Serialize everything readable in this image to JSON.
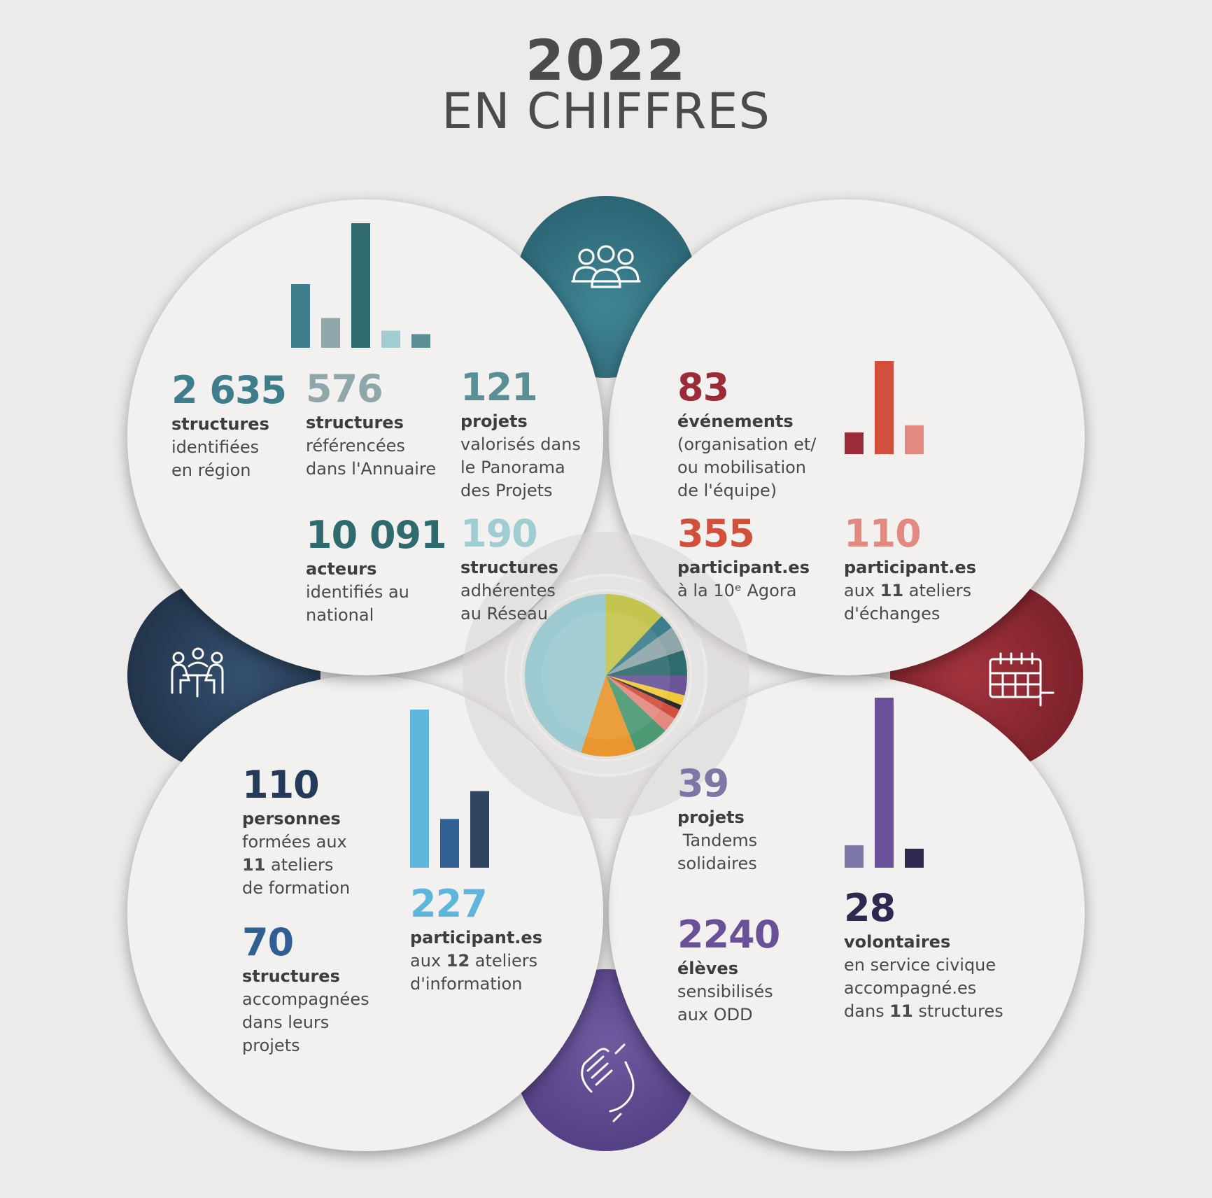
{
  "title": {
    "year": "2022",
    "subtitle": "EN CHIFFRES"
  },
  "icons": {
    "top": "group-people-icon",
    "left": "meeting-table-icon",
    "right": "calendar-icon",
    "bottom": "handshake-icon"
  },
  "colors": {
    "teal_petal": "#3a7a88",
    "navy_petal": "#2f4560",
    "red_petal": "#9b2c37",
    "purple_petal": "#6a5599",
    "circle_bg": "#f2f1ef",
    "page_bg": "#ecebea"
  },
  "top_left": {
    "s1": {
      "value": "2 635",
      "label": "structures",
      "lines": [
        "identifiées",
        "en région"
      ]
    },
    "s2": {
      "value": "576",
      "label": "structures",
      "lines": [
        "référencées",
        "dans l'Annuaire"
      ]
    },
    "s3": {
      "value": "121",
      "label": "projets",
      "lines": [
        "valorisés dans",
        "le Panorama",
        "des Projets"
      ]
    },
    "s4": {
      "value": "10 091",
      "label": "acteurs",
      "lines": [
        "identifiés au",
        "national"
      ]
    },
    "s5": {
      "value": "190",
      "label": "structures",
      "lines": [
        "adhérentes",
        "au Réseau"
      ]
    }
  },
  "top_right": {
    "s1": {
      "value": "83",
      "label": "événements",
      "lines": [
        "(organisation et/",
        "ou mobilisation",
        "de l'équipe)"
      ]
    },
    "s2": {
      "value": "355",
      "label": "participant.es",
      "lines": [
        "à la 10ᵉ Agora"
      ]
    },
    "s3": {
      "value": "110",
      "label": "participant.es",
      "line1_pre": "aux ",
      "line1_bold": "11",
      "line1_post": " ateliers",
      "line2": "d'échanges"
    }
  },
  "bottom_left": {
    "s1": {
      "value": "110",
      "label": "personnes",
      "line1": "formées aux",
      "line2_bold": "11",
      "line2_post": " ateliers",
      "line3": "de formation"
    },
    "s2": {
      "value": "70",
      "label": "structures",
      "lines": [
        "accompagnées",
        "dans leurs",
        "projets"
      ]
    },
    "s3": {
      "value": "227",
      "label": "participant.es",
      "line1_pre": "aux ",
      "line1_bold": "12",
      "line1_post": " ateliers",
      "line2": "d'information"
    }
  },
  "bottom_right": {
    "s1": {
      "value": "39",
      "label": "projets",
      "lines": [
        " Tandems",
        "solidaires"
      ]
    },
    "s2": {
      "value": "2240",
      "label": "élèves",
      "lines": [
        "sensibilisés",
        "aux ODD"
      ]
    },
    "s3": {
      "value": "28",
      "label": "volontaires",
      "line1": "en service civique",
      "line2": "accompagné.es",
      "line3_pre": "dans ",
      "line3_bold": "11",
      "line3_post": " structures"
    }
  },
  "chart_data": [
    {
      "type": "bar",
      "categories": [
        "structures identifiées en région",
        "structures référencées dans l'Annuaire",
        "acteurs identifiés au national",
        "structures adhérentes au Réseau",
        "projets valorisés"
      ],
      "values": [
        2635,
        576,
        10091,
        190,
        121
      ],
      "colors": [
        "#3e7e8c",
        "#8fa6ab",
        "#2f6b6e",
        "#9fcdd2",
        "#5b8f98"
      ]
    },
    {
      "type": "bar",
      "categories": [
        "événements",
        "participant.es à la 10ᵉ Agora",
        "participant.es aux ateliers d'échanges"
      ],
      "values": [
        83,
        355,
        110
      ],
      "colors": [
        "#9b2c37",
        "#d24f3c",
        "#e38a80"
      ]
    },
    {
      "type": "bar",
      "categories": [
        "participant.es aux ateliers d'information",
        "structures accompagnées",
        "personnes formées"
      ],
      "values": [
        227,
        70,
        110
      ],
      "colors": [
        "#5fb6dc",
        "#2f5f93",
        "#2f4560"
      ]
    },
    {
      "type": "bar",
      "categories": [
        "projets Tandems solidaires",
        "élèves sensibilisés",
        "volontaires"
      ],
      "values": [
        39,
        2240,
        28
      ],
      "colors": [
        "#7b78a8",
        "#6a4f99",
        "#2e2950"
      ]
    },
    {
      "type": "pie",
      "values": [
        12,
        3,
        5,
        5,
        4,
        2,
        1,
        2,
        3,
        7,
        11,
        45
      ],
      "colors": [
        "#c5c44e",
        "#3e7e8c",
        "#8fa6ab",
        "#2f6b6e",
        "#6a5599",
        "#f0c93a",
        "#2a2a2a",
        "#d24f3c",
        "#e38a80",
        "#4b9a73",
        "#e9962e",
        "#9ccad0"
      ]
    }
  ]
}
